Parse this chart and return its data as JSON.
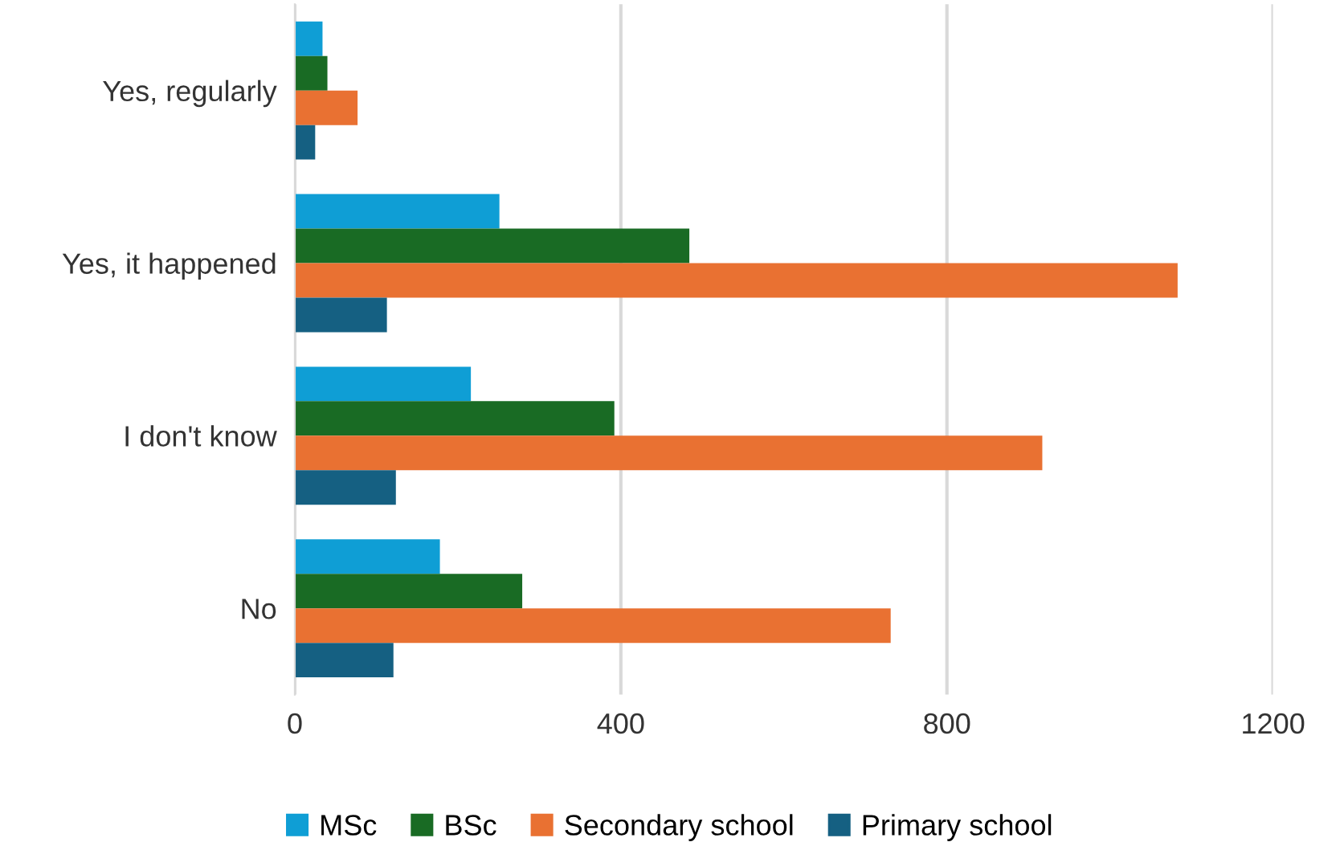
{
  "chart_data": {
    "type": "bar",
    "orientation": "horizontal",
    "categories": [
      "Yes, regularly",
      "Yes, it happened",
      "I don't know",
      "No"
    ],
    "series": [
      {
        "name": "MSc",
        "color": "#0f9ed5",
        "values": [
          34,
          251,
          216,
          178
        ]
      },
      {
        "name": "BSc",
        "color": "#196b24",
        "values": [
          40,
          484,
          392,
          279
        ]
      },
      {
        "name": "Secondary school",
        "color": "#e97132",
        "values": [
          77,
          1083,
          917,
          731
        ]
      },
      {
        "name": "Primary school",
        "color": "#156082",
        "values": [
          25,
          113,
          124,
          121
        ]
      }
    ],
    "xlim": [
      0,
      1200
    ],
    "xticks": [
      0,
      400,
      800,
      1200
    ],
    "grid": "x",
    "legend": "bottom"
  }
}
